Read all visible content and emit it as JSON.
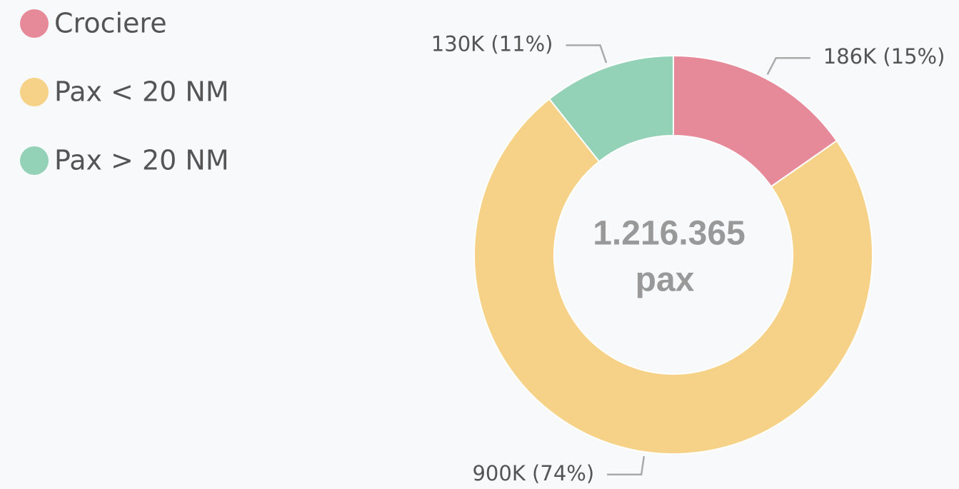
{
  "chart_data": {
    "type": "donut",
    "categories": [
      "Crociere",
      "Pax < 20 NM",
      "Pax > 20 NM"
    ],
    "values": [
      186000,
      900000,
      130000
    ],
    "value_labels": [
      "186K (15%)",
      "900K (74%)",
      "130K (11%)"
    ],
    "colors": [
      "#e68a9a",
      "#f6d289",
      "#94d2b8"
    ],
    "center_text": "1.216.365",
    "center_subtext": "pax",
    "legend": "top-left"
  }
}
